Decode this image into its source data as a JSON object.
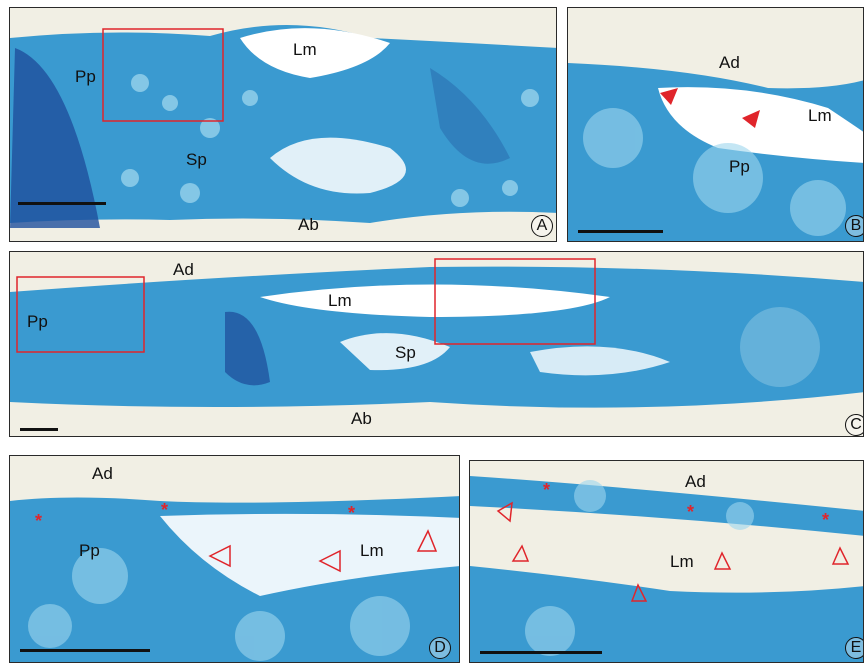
{
  "panels": {
    "A": {
      "letter": "A",
      "labels": {
        "lm": "Lm",
        "pp": "Pp",
        "sp": "Sp",
        "ab": "Ab"
      }
    },
    "B": {
      "letter": "B",
      "labels": {
        "ad": "Ad",
        "lm": "Lm",
        "pp": "Pp"
      }
    },
    "C": {
      "letter": "C",
      "labels": {
        "ad": "Ad",
        "lm": "Lm",
        "pp": "Pp",
        "sp": "Sp",
        "ab": "Ab"
      }
    },
    "D": {
      "letter": "D",
      "labels": {
        "ad": "Ad",
        "lm": "Lm",
        "pp": "Pp"
      }
    },
    "E": {
      "letter": "E",
      "labels": {
        "ad": "Ad",
        "lm": "Lm"
      }
    }
  },
  "colors": {
    "tissue": "#2f93c9",
    "tissue_dark": "#1d4f9a",
    "cell_light": "#8fd0ea",
    "background": "#f1efe4",
    "highlight": "#e0252b"
  }
}
